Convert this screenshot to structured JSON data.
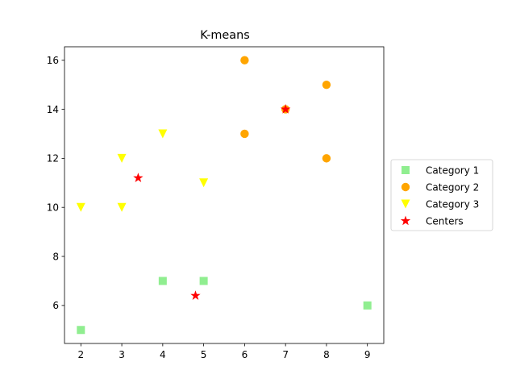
{
  "chart_data": {
    "type": "scatter",
    "title": "K-means",
    "xlabel": "",
    "ylabel": "",
    "xlim": [
      1.6,
      9.4
    ],
    "ylim": [
      4.45,
      16.55
    ],
    "xticks": [
      2,
      3,
      4,
      5,
      6,
      7,
      8,
      9
    ],
    "yticks": [
      6,
      8,
      10,
      12,
      14,
      16
    ],
    "grid": false,
    "legend_position": "outside-right",
    "series": [
      {
        "name": "Category 1",
        "marker": "square",
        "color": "#90ee90",
        "points": [
          [
            2,
            5
          ],
          [
            4,
            7
          ],
          [
            5,
            7
          ],
          [
            9,
            6
          ]
        ]
      },
      {
        "name": "Category 2",
        "marker": "circle",
        "color": "#ffa500",
        "points": [
          [
            6,
            16
          ],
          [
            6,
            13
          ],
          [
            7,
            14
          ],
          [
            8,
            15
          ],
          [
            8,
            12
          ]
        ]
      },
      {
        "name": "Category 3",
        "marker": "triangle-down",
        "color": "#ffff00",
        "points": [
          [
            2,
            10
          ],
          [
            3,
            10
          ],
          [
            3,
            12
          ],
          [
            4,
            13
          ],
          [
            5,
            11
          ]
        ]
      },
      {
        "name": "Centers",
        "marker": "star",
        "color": "#ff0000",
        "points": [
          [
            3.4,
            11.2
          ],
          [
            4.8,
            6.4
          ],
          [
            7.0,
            14.0
          ]
        ]
      }
    ]
  }
}
